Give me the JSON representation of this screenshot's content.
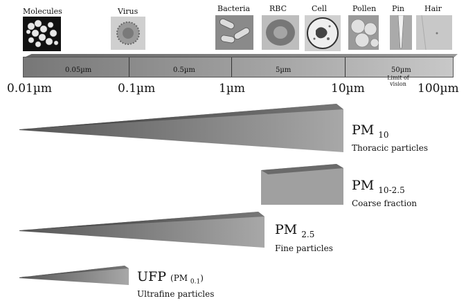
{
  "images": [
    {
      "label": "Molecules",
      "icon": "molecules-micrograph"
    },
    {
      "label": "Virus",
      "icon": "virus-micrograph"
    },
    {
      "label": "Bacteria",
      "icon": "bacteria-micrograph"
    },
    {
      "label": "RBC",
      "icon": "red-blood-cell-micrograph"
    },
    {
      "label": "Cell",
      "icon": "cell-micrograph"
    },
    {
      "label": "Pollen",
      "icon": "pollen-micrograph"
    },
    {
      "label": "Pin",
      "icon": "pin-micrograph"
    },
    {
      "label": "Hair",
      "icon": "hair-micrograph"
    }
  ],
  "scale": {
    "sublabels": [
      "0.05µm",
      "0.5µm",
      "5µm",
      "50µm"
    ],
    "limit_label": "Limit of vision",
    "ticks": [
      "0.01µm",
      "0.1µm",
      "1µm",
      "10µm",
      "100µm"
    ]
  },
  "fractions": [
    {
      "title": "PM",
      "subscript": "10",
      "desc": "Thoracic particles"
    },
    {
      "title": "PM",
      "subscript": "10-2.5",
      "desc": "Coarse fraction"
    },
    {
      "title": "PM",
      "subscript": "2.5",
      "desc": "Fine particles"
    },
    {
      "title": "UFP",
      "paren": "(PM",
      "subscript": "0.1",
      "paren_close": ")",
      "desc": "Ultrafine particles"
    }
  ]
}
